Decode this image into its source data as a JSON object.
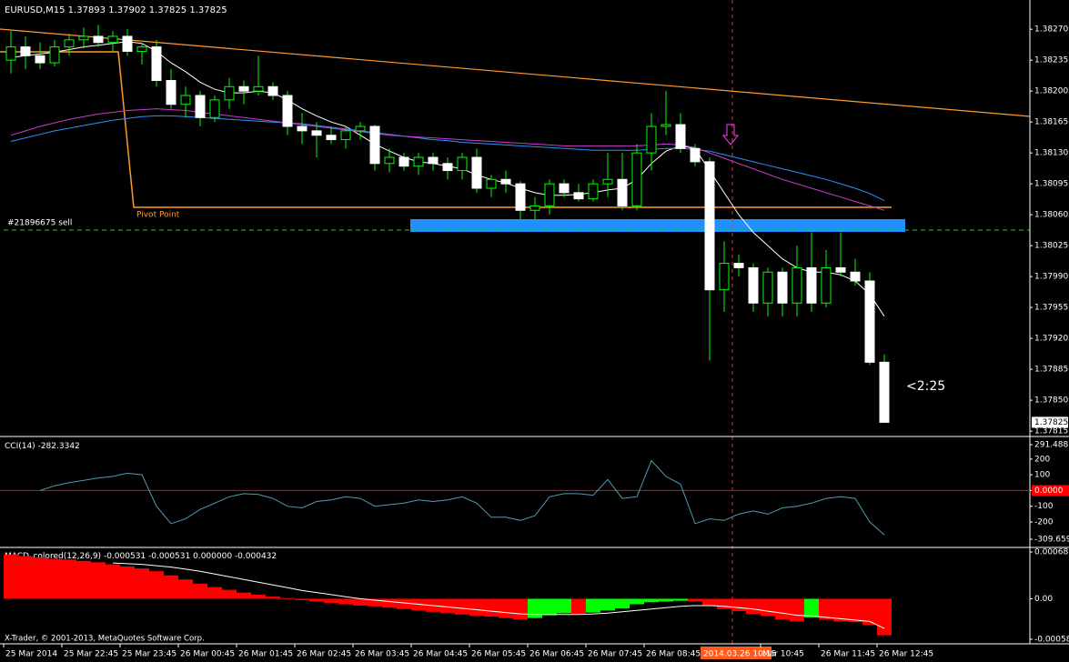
{
  "chart_data": [
    {
      "type": "candlestick",
      "title": "EURUSD,M15",
      "categories": [
        "25 Mar 2014",
        null,
        null,
        null,
        "25 Mar 22:45",
        null,
        null,
        null,
        "25 Mar 23:45",
        null,
        null,
        null,
        "26 Mar 00:45",
        null,
        null,
        null,
        "26 Mar 01:45",
        null,
        null,
        null,
        "26 Mar 02:45",
        null,
        null,
        null,
        "26 Mar 03:45",
        null,
        null,
        null,
        "26 Mar 04:45",
        null,
        null,
        null,
        "26 Mar 05:45",
        null,
        null,
        null,
        "26 Mar 06:45",
        null,
        null,
        null,
        "26 Mar 07:45",
        null,
        null,
        null,
        "26 Mar 08:45",
        null,
        null,
        null,
        null,
        null,
        "2014.03.26 10:15",
        null,
        "Mar 10:45",
        null,
        null,
        null,
        "26 Mar 11:45",
        null,
        null,
        null,
        "26 Mar 12:45"
      ],
      "open": [
        1.38235,
        1.3825,
        1.3824,
        1.38232,
        1.3825,
        1.38258,
        1.38262,
        1.38255,
        1.38262,
        1.38245,
        1.3825,
        1.38212,
        1.38185,
        1.38195,
        1.3817,
        1.3819,
        1.38205,
        1.382,
        1.38205,
        1.38195,
        1.3816,
        1.38155,
        1.3815,
        1.38145,
        1.38155,
        1.3816,
        1.38118,
        1.38125,
        1.38115,
        1.38125,
        1.38118,
        1.3811,
        1.38125,
        1.3809,
        1.381,
        1.38095,
        1.38065,
        1.3807,
        1.38095,
        1.38085,
        1.38078,
        1.38095,
        1.381,
        1.3807,
        1.3813,
        1.3816,
        1.38162,
        1.38135,
        1.3812,
        1.37975,
        1.38005,
        1.38,
        1.3796,
        1.37995,
        1.3796,
        1.38,
        1.3796,
        1.38,
        1.37995,
        1.37985,
        1.37893
      ],
      "high": [
        1.38268,
        1.38262,
        1.38255,
        1.38258,
        1.38265,
        1.38272,
        1.38275,
        1.38268,
        1.3827,
        1.38255,
        1.38258,
        1.38225,
        1.38205,
        1.382,
        1.38195,
        1.38215,
        1.38212,
        1.3824,
        1.3821,
        1.382,
        1.38175,
        1.38165,
        1.3816,
        1.3816,
        1.38165,
        1.38162,
        1.38135,
        1.3813,
        1.3813,
        1.3813,
        1.38125,
        1.3813,
        1.38135,
        1.38105,
        1.3811,
        1.38098,
        1.3808,
        1.381,
        1.381,
        1.38095,
        1.381,
        1.3813,
        1.3813,
        1.3814,
        1.38175,
        1.382,
        1.38175,
        1.3814,
        1.38125,
        1.3803,
        1.38015,
        1.38005,
        1.38,
        1.38,
        1.38025,
        1.3804,
        1.3802,
        1.3804,
        1.3801,
        1.37995,
        1.37902
      ],
      "low": [
        1.3822,
        1.38225,
        1.38225,
        1.38228,
        1.3824,
        1.38248,
        1.3825,
        1.38245,
        1.3824,
        1.3823,
        1.38205,
        1.3818,
        1.3817,
        1.3816,
        1.38165,
        1.3818,
        1.38185,
        1.38195,
        1.3819,
        1.3815,
        1.3814,
        1.38125,
        1.3814,
        1.38135,
        1.38145,
        1.3811,
        1.38108,
        1.3811,
        1.38105,
        1.3811,
        1.381,
        1.381,
        1.38085,
        1.3808,
        1.38085,
        1.38055,
        1.38055,
        1.3806,
        1.3808,
        1.38075,
        1.38075,
        1.3808,
        1.38065,
        1.38065,
        1.3811,
        1.3815,
        1.3813,
        1.38115,
        1.37895,
        1.3795,
        1.3799,
        1.3795,
        1.37945,
        1.37945,
        1.37945,
        1.3795,
        1.37955,
        1.3799,
        1.3798,
        1.3789,
        1.37825
      ],
      "close": [
        1.3825,
        1.3824,
        1.38232,
        1.3825,
        1.38258,
        1.38262,
        1.38255,
        1.38262,
        1.38245,
        1.3825,
        1.38212,
        1.38185,
        1.38195,
        1.3817,
        1.3819,
        1.38205,
        1.382,
        1.38205,
        1.38195,
        1.3816,
        1.38155,
        1.3815,
        1.38145,
        1.38155,
        1.3816,
        1.38118,
        1.38125,
        1.38115,
        1.38125,
        1.38118,
        1.3811,
        1.38125,
        1.3809,
        1.381,
        1.38095,
        1.38065,
        1.3807,
        1.38095,
        1.38085,
        1.38078,
        1.38095,
        1.381,
        1.3807,
        1.3813,
        1.3816,
        1.38162,
        1.38135,
        1.3812,
        1.37975,
        1.38005,
        1.38,
        1.3796,
        1.37995,
        1.3796,
        1.38,
        1.3796,
        1.38,
        1.37995,
        1.37985,
        1.37893,
        1.37825
      ],
      "up_fill": "#000000",
      "down_fill": "#ffffff",
      "wick_color": "#00ff00",
      "series": [
        {
          "color": "#ffffff",
          "values": [
            1.38238,
            1.3824,
            1.38242,
            1.38244,
            1.38247,
            1.3825,
            1.38252,
            1.38254,
            1.38256,
            1.38254,
            1.38245,
            1.38232,
            1.38222,
            1.3821,
            1.38202,
            1.38198,
            1.38198,
            1.382,
            1.38198,
            1.3819,
            1.3818,
            1.38172,
            1.38165,
            1.3816,
            1.3815,
            1.3814,
            1.38132,
            1.38125,
            1.3812,
            1.38118,
            1.38115,
            1.38112,
            1.38105,
            1.381,
            1.38096,
            1.3809,
            1.38085,
            1.38082,
            1.38082,
            1.38083,
            1.38085,
            1.38088,
            1.3809,
            1.381,
            1.38118,
            1.38132,
            1.38138,
            1.38135,
            1.3811,
            1.38085,
            1.3806,
            1.3804,
            1.38025,
            1.3801,
            1.38,
            1.37995,
            1.37995,
            1.37992,
            1.37985,
            1.3797,
            1.37945
          ]
        },
        {
          "color": "#2f8fff",
          "values": [
            1.38143,
            1.38147,
            1.38151,
            1.38155,
            1.38158,
            1.38161,
            1.38164,
            1.38167,
            1.38169,
            1.38171,
            1.38172,
            1.38172,
            1.38171,
            1.3817,
            1.38169,
            1.38168,
            1.38167,
            1.38166,
            1.38165,
            1.38164,
            1.38163,
            1.38161,
            1.38159,
            1.38157,
            1.38155,
            1.38153,
            1.38151,
            1.38149,
            1.38147,
            1.38145,
            1.38144,
            1.38142,
            1.38141,
            1.3814,
            1.38139,
            1.38138,
            1.38137,
            1.38136,
            1.38135,
            1.38134,
            1.38133,
            1.38133,
            1.38133,
            1.38133,
            1.38134,
            1.38135,
            1.38135,
            1.38134,
            1.38132,
            1.38128,
            1.38124,
            1.3812,
            1.38116,
            1.38112,
            1.38108,
            1.38104,
            1.381,
            1.38095,
            1.3809,
            1.38084,
            1.38076
          ]
        },
        {
          "color": "#c83cd0",
          "values": [
            1.3815,
            1.38155,
            1.3816,
            1.38164,
            1.38168,
            1.38171,
            1.38174,
            1.38176,
            1.38178,
            1.38179,
            1.3818,
            1.38179,
            1.38178,
            1.38176,
            1.38174,
            1.38172,
            1.3817,
            1.38168,
            1.38166,
            1.38164,
            1.38162,
            1.3816,
            1.38158,
            1.38156,
            1.38154,
            1.38152,
            1.3815,
            1.38149,
            1.38148,
            1.38147,
            1.38146,
            1.38145,
            1.38144,
            1.38143,
            1.38142,
            1.38141,
            1.3814,
            1.38139,
            1.38138,
            1.38138,
            1.38138,
            1.38138,
            1.38138,
            1.38138,
            1.38139,
            1.3814,
            1.38139,
            1.38136,
            1.3813,
            1.38124,
            1.38118,
            1.38112,
            1.38106,
            1.381,
            1.38095,
            1.3809,
            1.38085,
            1.3808,
            1.38075,
            1.3807,
            1.38065
          ]
        }
      ],
      "ylim": [
        1.37811,
        1.38299
      ],
      "yticks": [
        {
          "value": 1.3827,
          "label": "1.38270"
        },
        1.38235,
        {
          "value": 1.382,
          "label": "1.38200"
        },
        1.38165,
        {
          "value": 1.3813,
          "label": "1.38130"
        },
        1.38095,
        {
          "value": 1.3806,
          "label": "1.38060"
        },
        1.38025,
        {
          "value": 1.3799,
          "label": "1.37990"
        },
        1.37955,
        {
          "value": 1.3792,
          "label": "1.37920"
        },
        1.37885,
        {
          "value": 1.3785,
          "label": "1.37850"
        },
        1.37815
      ],
      "annotations": [
        "Pivot Point",
        "#21896675 sell",
        "<2:25"
      ]
    },
    {
      "type": "line",
      "title": "CCI(14)",
      "color": "#4f9ab3",
      "values": [
        null,
        null,
        0,
        30,
        50,
        65,
        80,
        90,
        110,
        100,
        -100,
        -210,
        -180,
        -120,
        -80,
        -40,
        -20,
        -25,
        -50,
        -100,
        -110,
        -70,
        -60,
        -40,
        -50,
        -100,
        -90,
        -80,
        -60,
        -70,
        -60,
        -40,
        -80,
        -170,
        -170,
        -190,
        -160,
        -40,
        -20,
        -20,
        -30,
        70,
        -50,
        -40,
        190,
        90,
        40,
        -210,
        -180,
        -190,
        -150,
        -130,
        -150,
        -110,
        -100,
        -80,
        -50,
        -40,
        -50,
        -200,
        -282.3342
      ],
      "ylim": [
        -309.6591,
        291.4881
      ],
      "yticks": [
        291.4881,
        200,
        100,
        {
          "value": 0,
          "label": "0.0000"
        },
        -100,
        -200,
        -309.6591
      ],
      "level_color": "#ff0000"
    },
    {
      "type": "macd",
      "title": "MACD_colored(12,26,9)",
      "legend_values": [
        "-0.000531",
        "-0.000531",
        "0.000000",
        "-0.000432"
      ],
      "up_color": "#00ff00",
      "down_color": "#ff0000",
      "signal_color": "#ffffff",
      "values": [
        0.00064,
        0.00062,
        0.0006,
        0.00058,
        0.00057,
        0.00055,
        0.00053,
        0.0005,
        0.00047,
        0.00044,
        0.0004,
        0.00034,
        0.00028,
        0.00022,
        0.00017,
        0.00013,
        9e-05,
        6e-05,
        3e-05,
        1e-05,
        -2e-05,
        -4e-05,
        -6e-05,
        -8e-05,
        -0.0001,
        -0.00011,
        -0.00013,
        -0.00015,
        -0.00017,
        -0.00019,
        -0.00021,
        -0.00023,
        -0.00025,
        -0.00026,
        -0.00028,
        -0.0003,
        -0.00028,
        -0.00024,
        -0.00021,
        -0.00023,
        -0.0002,
        -0.00017,
        -0.00014,
        -8e-05,
        -5e-05,
        -4e-05,
        -3e-05,
        -4e-05,
        -0.0001,
        -0.00015,
        -0.00018,
        -0.00022,
        -0.00025,
        -0.0003,
        -0.00033,
        -0.00027,
        -0.0003,
        -0.00033,
        -0.00034,
        -0.00038,
        -0.000531
      ],
      "signal": [
        null,
        null,
        null,
        null,
        null,
        null,
        null,
        0.00052,
        0.00051,
        0.0005,
        0.00048,
        0.00046,
        0.00043,
        0.0004,
        0.00036,
        0.00032,
        0.00028,
        0.00024,
        0.0002,
        0.00016,
        0.00012,
        9e-05,
        6e-05,
        3e-05,
        0.0,
        -2e-05,
        -4e-05,
        -6e-05,
        -8e-05,
        -0.0001,
        -0.00012,
        -0.00014,
        -0.00016,
        -0.00018,
        -0.0002,
        -0.00022,
        -0.00023,
        -0.00023,
        -0.00023,
        -0.00023,
        -0.00022,
        -0.00021,
        -0.00019,
        -0.00017,
        -0.00015,
        -0.00013,
        -0.00011,
        -0.0001,
        -0.0001,
        -0.00011,
        -0.00013,
        -0.00015,
        -0.00018,
        -0.00021,
        -0.00024,
        -0.00025,
        -0.00027,
        -0.00029,
        -0.00031,
        -0.00033,
        -0.000432
      ],
      "ylim": [
        -0.000589,
        0.00068
      ],
      "yticks": [
        0.00068,
        {
          "value": 0,
          "label": "0.00"
        },
        -0.000589
      ]
    }
  ],
  "footer": "X-Trader, © 2001-2013, MetaQuotes Software Corp."
}
